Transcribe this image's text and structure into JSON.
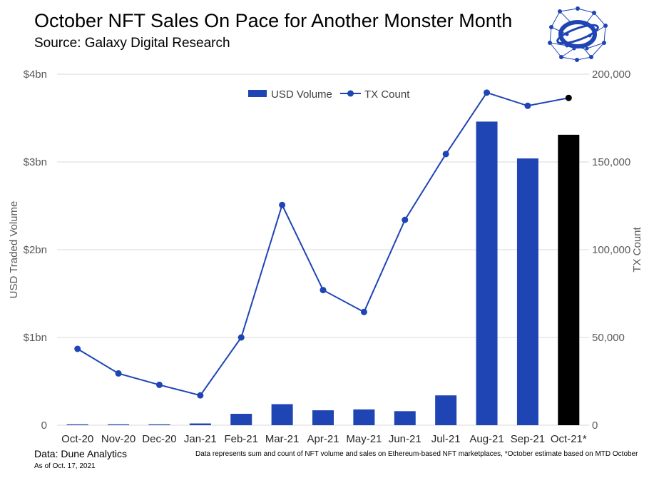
{
  "header": {
    "title": "October NFT Sales On Pace for Another Monster Month",
    "subtitle": "Source: Galaxy Digital Research",
    "logo_icon": "network-globe-logo"
  },
  "footer": {
    "source": "Data: Dune Analytics",
    "as_of": "As of Oct. 17, 2021",
    "note": "Data represents sum and count of NFT volume and sales on Ethereum-based NFT marketplaces, *October estimate based on MTD October"
  },
  "colors": {
    "bar": "#1f45b5",
    "bar_estimate": "#000000",
    "line": "#1f45b5",
    "line_estimate_marker": "#000000",
    "grid": "#d9d9d9",
    "logo": "#1f45b5"
  },
  "chart_data": {
    "type": "bar",
    "title": "October NFT Sales On Pace for Another Monster Month",
    "categories": [
      "Oct-20",
      "Nov-20",
      "Dec-20",
      "Jan-21",
      "Feb-21",
      "Mar-21",
      "Apr-21",
      "May-21",
      "Jun-21",
      "Jul-21",
      "Aug-21",
      "Sep-21",
      "Oct-21*"
    ],
    "series": [
      {
        "name": "USD Volume",
        "type": "bar",
        "axis": "left",
        "unit": "USD billions",
        "values": [
          0.01,
          0.01,
          0.01,
          0.02,
          0.13,
          0.24,
          0.17,
          0.18,
          0.16,
          0.34,
          3.46,
          3.04,
          3.31
        ]
      },
      {
        "name": "TX Count",
        "type": "line",
        "axis": "right",
        "values": [
          43500,
          29500,
          23000,
          17000,
          50000,
          125500,
          77000,
          64500,
          117000,
          154500,
          189500,
          182000,
          186500
        ]
      }
    ],
    "ylabel": "USD Traded Volume",
    "ylim": [
      0,
      4
    ],
    "yticks": [
      "0",
      "$1bn",
      "$2bn",
      "$3bn",
      "$4bn"
    ],
    "y2label": "TX Count",
    "y2lim": [
      0,
      200000
    ],
    "y2ticks": [
      "0",
      "50,000",
      "100,000",
      "150,000",
      "200,000"
    ],
    "grid": true,
    "legend_position": "top-center",
    "estimate_category": "Oct-21*"
  }
}
